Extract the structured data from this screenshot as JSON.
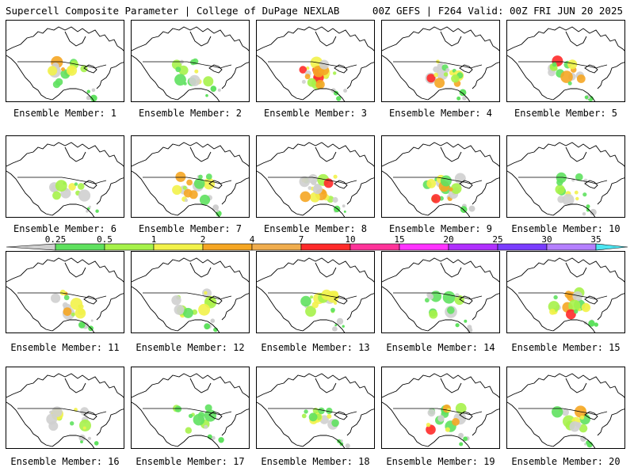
{
  "header": {
    "left": "Supercell Composite Parameter | College of DuPage NEXLAB",
    "right": "00Z GEFS | F264 Valid: 00Z FRI JUN 20 2025"
  },
  "legend": {
    "levels": [
      "0.25",
      "0.5",
      "1",
      "2",
      "4",
      "7",
      "10",
      "15",
      "20",
      "25",
      "30",
      "35"
    ],
    "colors": [
      "#cfcfcf",
      "#5fe15f",
      "#a6f24a",
      "#f2f24a",
      "#f5a623",
      "#f0ad4e",
      "#ff2a2a",
      "#ff3399",
      "#ff33ff",
      "#b030ff",
      "#7a3dff",
      "#b480ff",
      "#4de6f2"
    ]
  },
  "members": [
    {
      "label": "Ensemble Member: 1",
      "intensity": 0.7
    },
    {
      "label": "Ensemble Member: 2",
      "intensity": 0.5
    },
    {
      "label": "Ensemble Member: 3",
      "intensity": 0.9
    },
    {
      "label": "Ensemble Member: 4",
      "intensity": 0.8
    },
    {
      "label": "Ensemble Member: 5",
      "intensity": 0.8
    },
    {
      "label": "Ensemble Member: 6",
      "intensity": 0.4
    },
    {
      "label": "Ensemble Member: 7",
      "intensity": 0.8
    },
    {
      "label": "Ensemble Member: 8",
      "intensity": 0.9
    },
    {
      "label": "Ensemble Member: 9",
      "intensity": 0.9
    },
    {
      "label": "Ensemble Member: 10",
      "intensity": 0.5
    },
    {
      "label": "Ensemble Member: 11",
      "intensity": 0.6
    },
    {
      "label": "Ensemble Member: 12",
      "intensity": 0.5
    },
    {
      "label": "Ensemble Member: 13",
      "intensity": 0.6
    },
    {
      "label": "Ensemble Member: 14",
      "intensity": 0.4
    },
    {
      "label": "Ensemble Member: 15",
      "intensity": 0.8
    },
    {
      "label": "Ensemble Member: 16",
      "intensity": 0.5
    },
    {
      "label": "Ensemble Member: 17",
      "intensity": 0.4
    },
    {
      "label": "Ensemble Member: 18",
      "intensity": 0.5
    },
    {
      "label": "Ensemble Member: 19",
      "intensity": 0.8
    },
    {
      "label": "Ensemble Member: 20",
      "intensity": 0.6
    }
  ]
}
